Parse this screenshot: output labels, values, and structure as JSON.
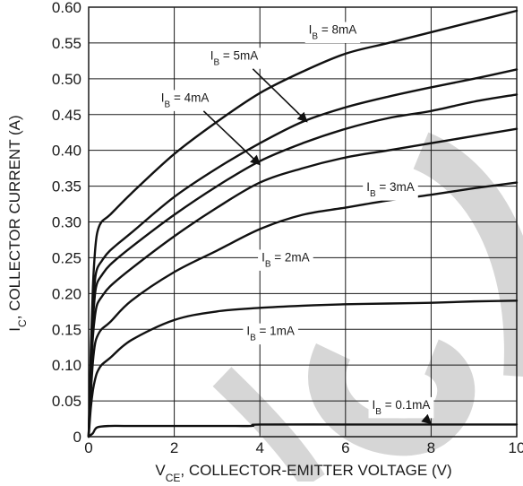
{
  "chart_data": {
    "type": "line",
    "xlabel": {
      "main": "V",
      "sub": "CE",
      "rest": ", COLLECTOR-EMITTER VOLTAGE (V)"
    },
    "ylabel": {
      "main": "I",
      "sub": "C",
      "rest": ", COLLECTOR CURRENT (A)"
    },
    "xlim": [
      0,
      10
    ],
    "ylim": [
      0,
      0.6
    ],
    "grid": true,
    "x_ticks": [
      "0",
      "2",
      "4",
      "6",
      "8",
      "10"
    ],
    "x_tick_values": [
      0,
      2,
      4,
      6,
      8,
      10
    ],
    "y_ticks": [
      "0",
      "0.05",
      "0.10",
      "0.15",
      "0.20",
      "0.25",
      "0.30",
      "0.35",
      "0.40",
      "0.45",
      "0.50",
      "0.55",
      "0.60"
    ],
    "y_tick_values": [
      0,
      0.05,
      0.1,
      0.15,
      0.2,
      0.25,
      0.3,
      0.35,
      0.4,
      0.45,
      0.5,
      0.55,
      0.6
    ],
    "series": [
      {
        "name": "I_B = 8mA",
        "label": {
          "pre": "I",
          "sub": "B",
          "post": " = 8mA"
        },
        "x": [
          0,
          0.05,
          0.1,
          0.15,
          0.2,
          0.3,
          0.5,
          1,
          2,
          3,
          4,
          5,
          6,
          7,
          8,
          9,
          10
        ],
        "y": [
          0,
          0.12,
          0.21,
          0.26,
          0.285,
          0.3,
          0.31,
          0.34,
          0.395,
          0.44,
          0.48,
          0.51,
          0.535,
          0.55,
          0.565,
          0.58,
          0.595
        ]
      },
      {
        "name": "I_B = 5mA",
        "label": {
          "pre": "I",
          "sub": "B",
          "post": " = 5mA"
        },
        "x": [
          0,
          0.05,
          0.1,
          0.15,
          0.2,
          0.3,
          0.5,
          1,
          2,
          3,
          4,
          5,
          6,
          7,
          8,
          9,
          10
        ],
        "y": [
          0,
          0.1,
          0.18,
          0.22,
          0.235,
          0.245,
          0.26,
          0.285,
          0.335,
          0.375,
          0.41,
          0.44,
          0.46,
          0.475,
          0.488,
          0.5,
          0.513
        ]
      },
      {
        "name": "I_B = 4mA",
        "label": {
          "pre": "I",
          "sub": "B",
          "post": " = 4mA"
        },
        "x": [
          0,
          0.05,
          0.1,
          0.15,
          0.2,
          0.3,
          0.5,
          1,
          2,
          3,
          4,
          5,
          6,
          7,
          8,
          9,
          10
        ],
        "y": [
          0,
          0.09,
          0.16,
          0.2,
          0.215,
          0.225,
          0.24,
          0.265,
          0.31,
          0.35,
          0.385,
          0.41,
          0.43,
          0.445,
          0.455,
          0.468,
          0.478
        ]
      },
      {
        "name": "I_B = 3mA",
        "label": {
          "pre": "I",
          "sub": "B",
          "post": " = 3mA"
        },
        "x": [
          0,
          0.05,
          0.1,
          0.15,
          0.2,
          0.3,
          0.5,
          1,
          2,
          3,
          4,
          5,
          6,
          7,
          8,
          9,
          10
        ],
        "y": [
          0,
          0.08,
          0.14,
          0.17,
          0.185,
          0.195,
          0.21,
          0.235,
          0.28,
          0.32,
          0.355,
          0.375,
          0.39,
          0.4,
          0.41,
          0.42,
          0.43
        ]
      },
      {
        "name": "I_B = 2mA",
        "label": {
          "pre": "I",
          "sub": "B",
          "post": " = 2mA"
        },
        "x": [
          0,
          0.05,
          0.1,
          0.15,
          0.2,
          0.3,
          0.5,
          1,
          2,
          3,
          4,
          5,
          6,
          7,
          8,
          9,
          10
        ],
        "y": [
          0,
          0.06,
          0.105,
          0.13,
          0.14,
          0.15,
          0.16,
          0.19,
          0.23,
          0.26,
          0.29,
          0.31,
          0.32,
          0.33,
          0.338,
          0.347,
          0.355
        ]
      },
      {
        "name": "I_B = 1mA",
        "label": {
          "pre": "I",
          "sub": "B",
          "post": " = 1mA"
        },
        "x": [
          0,
          0.05,
          0.1,
          0.15,
          0.2,
          0.3,
          0.5,
          1,
          2,
          3,
          4,
          5,
          6,
          7,
          8,
          9,
          10
        ],
        "y": [
          0,
          0.04,
          0.065,
          0.08,
          0.09,
          0.1,
          0.11,
          0.135,
          0.163,
          0.175,
          0.18,
          0.183,
          0.185,
          0.186,
          0.187,
          0.189,
          0.19
        ]
      },
      {
        "name": "I_B = 0.1mA",
        "label": {
          "pre": "I",
          "sub": "B",
          "post": " = 0.1mA"
        },
        "x": [
          0,
          0.1,
          0.2,
          0.5,
          1,
          3,
          3.8,
          4,
          6,
          8,
          10
        ],
        "y": [
          0,
          0.005,
          0.013,
          0.015,
          0.015,
          0.015,
          0.015,
          0.017,
          0.017,
          0.017,
          0.017
        ]
      }
    ]
  },
  "annotations": [
    {
      "series": 0,
      "x": 5.7,
      "y": 0.563,
      "arrow": false
    },
    {
      "series": 1,
      "x": 3.4,
      "y": 0.527,
      "arrow": true,
      "ax": 5.1,
      "ay": 0.44
    },
    {
      "series": 2,
      "x": 2.25,
      "y": 0.468,
      "arrow": true,
      "ax": 4.0,
      "ay": 0.38
    },
    {
      "series": 3,
      "x": 7.05,
      "y": 0.343,
      "arrow": false
    },
    {
      "series": 4,
      "x": 4.6,
      "y": 0.245,
      "arrow": false
    },
    {
      "series": 5,
      "x": 4.25,
      "y": 0.142,
      "arrow": false
    },
    {
      "series": 6,
      "x": 7.3,
      "y": 0.039,
      "arrow": true,
      "ax": 8.0,
      "ay": 0.018
    }
  ],
  "colors": {
    "curve": "#111111",
    "grid": "#1a1a1a",
    "watermark": "#d6d6d6",
    "background": "#ffffff"
  }
}
